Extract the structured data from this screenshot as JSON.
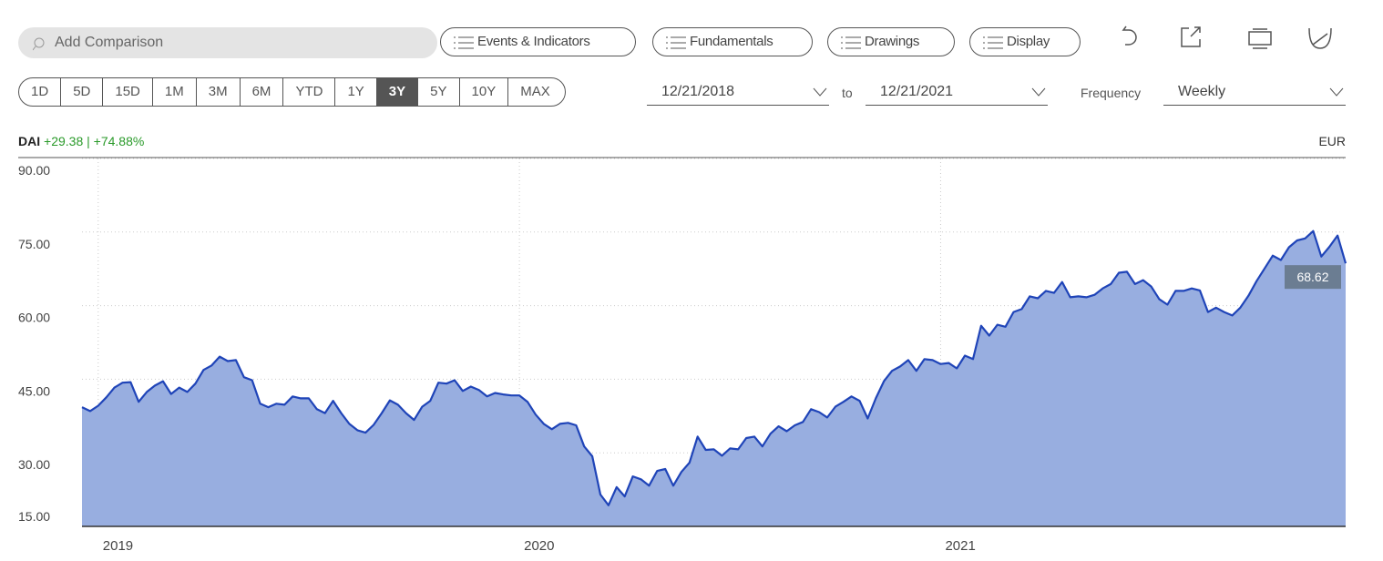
{
  "toolbar": {
    "search_placeholder": "Add Comparison",
    "buttons": [
      "Events & Indicators",
      "Fundamentals",
      "Drawings",
      "Display"
    ],
    "ranges": [
      "1D",
      "5D",
      "15D",
      "1M",
      "3M",
      "6M",
      "YTD",
      "1Y",
      "3Y",
      "5Y",
      "10Y",
      "MAX"
    ],
    "active_range": 8,
    "start_date": "12/21/2018",
    "to": "to",
    "end_date": "12/21/2021",
    "frequency_label": "Frequency",
    "frequency": "Weekly"
  },
  "header": {
    "symbol": "DAI",
    "change": "+29.38 | +74.88%",
    "currency": "EUR"
  },
  "chart_data": {
    "type": "area",
    "categories": [
      null,
      null,
      "2019",
      null,
      null,
      null,
      null,
      null,
      null,
      null,
      null,
      null,
      null,
      null,
      null,
      null,
      null,
      null,
      null,
      null,
      null,
      null,
      null,
      null,
      null,
      null,
      null,
      null,
      null,
      null,
      null,
      null,
      null,
      null,
      null,
      null,
      null,
      null,
      null,
      null,
      null,
      null,
      null,
      null,
      null,
      null,
      null,
      null,
      null,
      null,
      null,
      null,
      null,
      null,
      "2020",
      null,
      null,
      null,
      null,
      null,
      null,
      null,
      null,
      null,
      null,
      null,
      null,
      null,
      null,
      null,
      null,
      null,
      null,
      null,
      null,
      null,
      null,
      null,
      null,
      null,
      null,
      null,
      null,
      null,
      null,
      null,
      null,
      null,
      null,
      null,
      null,
      null,
      null,
      null,
      null,
      null,
      null,
      null,
      null,
      null,
      null,
      null,
      null,
      null,
      null,
      null,
      "2021",
      null,
      null,
      null,
      null,
      null,
      null,
      null,
      null,
      null,
      null,
      null,
      null,
      null,
      null,
      null,
      null,
      null,
      null,
      null,
      null,
      null,
      null,
      null,
      null,
      null,
      null,
      null,
      null,
      null,
      null,
      null,
      null,
      null,
      null,
      null,
      null,
      null,
      null,
      null,
      null,
      null,
      null,
      null,
      null,
      null,
      null,
      null,
      null,
      null,
      null
    ],
    "series": [
      {
        "name": "DAI",
        "color": "#1f44b8",
        "fill": "#98aee0",
        "values": [
          39.3,
          38.5,
          39.6,
          41.3,
          43.3,
          44.3,
          44.4,
          40.4,
          42.4,
          43.7,
          44.6,
          42.0,
          43.3,
          42.4,
          44.1,
          46.9,
          47.8,
          49.6,
          48.7,
          48.9,
          45.4,
          44.8,
          40.0,
          39.3,
          40.0,
          39.8,
          41.5,
          41.1,
          41.1,
          38.9,
          38.1,
          40.6,
          38.1,
          35.9,
          34.6,
          34.1,
          35.7,
          38.1,
          40.7,
          39.8,
          38.1,
          36.7,
          39.4,
          40.6,
          44.3,
          44.1,
          44.8,
          42.6,
          43.5,
          42.8,
          41.5,
          42.2,
          41.9,
          41.7,
          41.7,
          40.4,
          37.8,
          35.9,
          34.8,
          35.9,
          36.1,
          35.6,
          31.3,
          29.3,
          21.5,
          19.3,
          23.0,
          21.1,
          25.2,
          24.6,
          23.3,
          26.3,
          26.7,
          23.3,
          26.1,
          28.0,
          33.3,
          30.6,
          30.7,
          29.4,
          30.9,
          30.7,
          33.0,
          33.3,
          31.3,
          33.9,
          35.4,
          34.4,
          35.6,
          36.3,
          38.9,
          38.3,
          37.2,
          39.4,
          40.4,
          41.5,
          40.6,
          37.0,
          41.1,
          44.6,
          46.7,
          47.6,
          48.9,
          46.7,
          49.1,
          48.9,
          48.1,
          48.3,
          47.2,
          49.8,
          49.1,
          55.9,
          53.9,
          56.1,
          55.7,
          58.7,
          59.3,
          61.9,
          61.5,
          63.0,
          62.6,
          64.8,
          61.7,
          61.9,
          61.7,
          62.2,
          63.5,
          64.4,
          66.7,
          66.9,
          64.4,
          65.2,
          63.9,
          61.3,
          60.2,
          63.0,
          63.0,
          63.5,
          63.1,
          58.7,
          59.6,
          58.7,
          58.0,
          59.6,
          62.0,
          65.0,
          67.6,
          70.2,
          69.3,
          71.9,
          73.3,
          73.7,
          75.2,
          70.0,
          72.0,
          74.3,
          68.62
        ]
      }
    ],
    "ylim": [
      15,
      90
    ],
    "yticks": [
      {
        "value": 15,
        "label": "15.00"
      },
      {
        "value": 30,
        "label": "30.00"
      },
      {
        "value": 45,
        "label": "45.00"
      },
      {
        "value": 60,
        "label": "60.00"
      },
      {
        "value": 75,
        "label": "75.00"
      },
      {
        "value": 90,
        "label": "90.00"
      }
    ],
    "grid": true
  }
}
